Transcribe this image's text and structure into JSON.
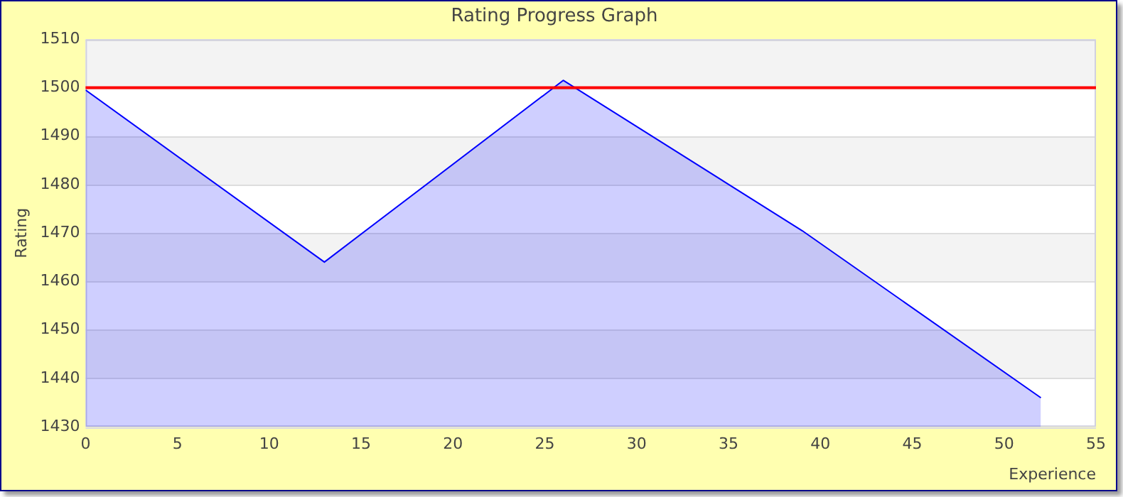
{
  "chart_data": {
    "type": "area",
    "title": "Rating Progress Graph",
    "xlabel": "Experience",
    "ylabel": "Rating",
    "x": [
      0,
      13,
      26,
      39,
      52
    ],
    "series": [
      {
        "color": "#0000ff",
        "values": [
          1499.5,
          1464,
          1501.5,
          1470.5,
          1436
        ]
      }
    ],
    "xlim": [
      0,
      55
    ],
    "xticks": [
      0,
      5,
      10,
      15,
      20,
      25,
      30,
      35,
      40,
      45,
      50,
      55
    ],
    "ylim": [
      1430,
      1510
    ],
    "yticks": [
      1430,
      1440,
      1450,
      1460,
      1470,
      1480,
      1490,
      1500,
      1510
    ],
    "ref_lines": [
      {
        "axis": "y",
        "value": 1500,
        "color": "#ff0000"
      }
    ],
    "grid": "y",
    "legend": false,
    "marker": "none",
    "line_style": "solid"
  }
}
